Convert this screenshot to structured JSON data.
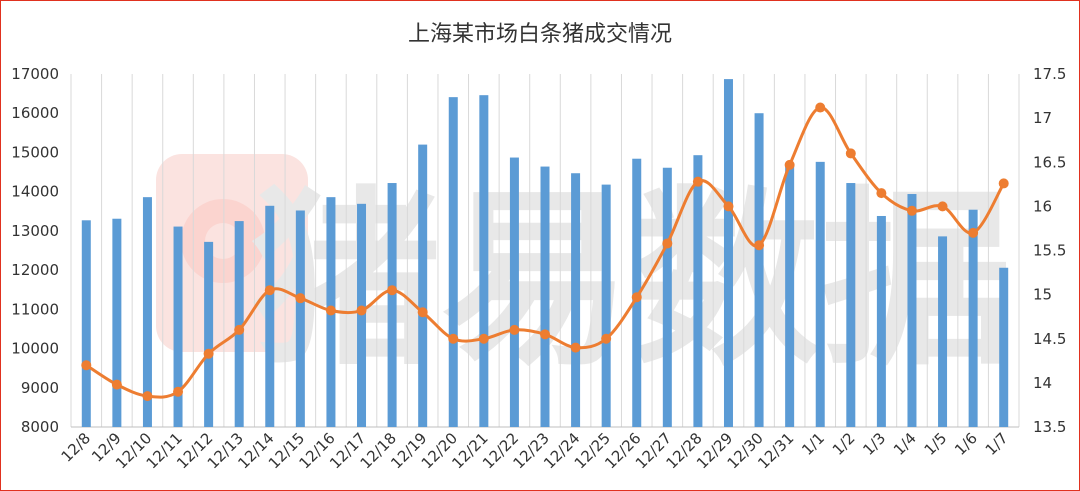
{
  "chart_data": {
    "type": "bar+line",
    "title": "上海某市场白条猪成交情况",
    "categories": [
      "12/8",
      "12/9",
      "12/10",
      "12/11",
      "12/12",
      "12/13",
      "12/14",
      "12/15",
      "12/16",
      "12/17",
      "12/18",
      "12/19",
      "12/20",
      "12/21",
      "12/22",
      "12/23",
      "12/24",
      "12/25",
      "12/26",
      "12/27",
      "12/28",
      "12/29",
      "12/30",
      "12/31",
      "1/1",
      "1/2",
      "1/3",
      "1/4",
      "1/5",
      "1/6",
      "1/7"
    ],
    "series": [
      {
        "type": "bar",
        "axis": "left",
        "color": "#5b9bd5",
        "values": [
          13270,
          13310,
          13860,
          13110,
          12720,
          13250,
          13640,
          13520,
          13860,
          13690,
          14220,
          15200,
          16410,
          16460,
          14870,
          14640,
          14470,
          14180,
          14840,
          14610,
          14930,
          16870,
          16000,
          14700,
          14760,
          14220,
          13380,
          13940,
          12860,
          13540,
          12060
        ]
      },
      {
        "type": "line",
        "axis": "right",
        "color": "#ed7d31",
        "smooth": true,
        "values": [
          14.2,
          13.98,
          13.85,
          13.9,
          14.33,
          14.6,
          15.05,
          14.96,
          14.82,
          14.82,
          15.05,
          14.8,
          14.5,
          14.5,
          14.6,
          14.55,
          14.4,
          14.5,
          14.97,
          15.58,
          16.28,
          16.0,
          15.56,
          16.47,
          17.12,
          16.6,
          16.15,
          15.95,
          16.0,
          15.7,
          16.26
        ]
      }
    ],
    "y_left": {
      "min": 8000,
      "max": 17000,
      "step": 1000,
      "ticks": [
        "8000",
        "9000",
        "10000",
        "11000",
        "12000",
        "13000",
        "14000",
        "15000",
        "16000",
        "17000"
      ]
    },
    "y_right": {
      "min": 13.5,
      "max": 17.5,
      "step": 0.5,
      "ticks": [
        "13.5",
        "14",
        "14.5",
        "15",
        "15.5",
        "16",
        "16.5",
        "17",
        "17.5"
      ]
    },
    "grid": "vertical",
    "legend": "none",
    "watermark": {
      "text": "猪易数据",
      "color": "#e8e8e8"
    }
  }
}
